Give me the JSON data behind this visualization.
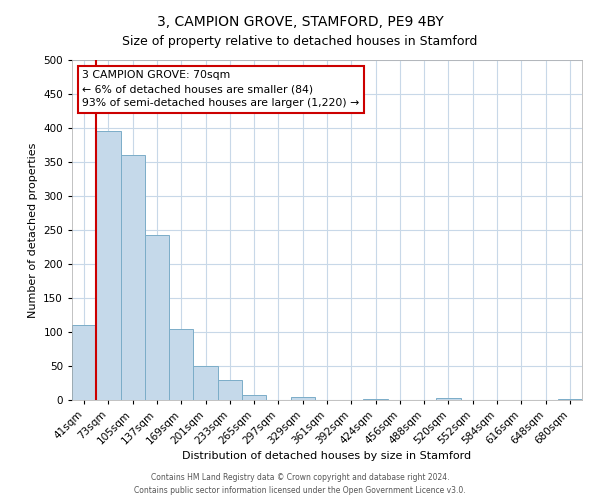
{
  "title": "3, CAMPION GROVE, STAMFORD, PE9 4BY",
  "subtitle": "Size of property relative to detached houses in Stamford",
  "xlabel": "Distribution of detached houses by size in Stamford",
  "ylabel": "Number of detached properties",
  "bar_labels": [
    "41sqm",
    "73sqm",
    "105sqm",
    "137sqm",
    "169sqm",
    "201sqm",
    "233sqm",
    "265sqm",
    "297sqm",
    "329sqm",
    "361sqm",
    "392sqm",
    "424sqm",
    "456sqm",
    "488sqm",
    "520sqm",
    "552sqm",
    "584sqm",
    "616sqm",
    "648sqm",
    "680sqm"
  ],
  "bar_values": [
    110,
    395,
    360,
    243,
    105,
    50,
    30,
    8,
    0,
    5,
    0,
    0,
    2,
    0,
    0,
    3,
    0,
    0,
    0,
    0,
    2
  ],
  "bar_color": "#c5d9ea",
  "bar_edgecolor": "#7badc8",
  "highlight_color": "#cc0000",
  "property_line_label": "3 CAMPION GROVE: 70sqm",
  "annotation_line1": "← 6% of detached houses are smaller (84)",
  "annotation_line2": "93% of semi-detached houses are larger (1,220) →",
  "box_facecolor": "#ffffff",
  "box_edgecolor": "#cc0000",
  "ylim": [
    0,
    500
  ],
  "yticks": [
    0,
    50,
    100,
    150,
    200,
    250,
    300,
    350,
    400,
    450,
    500
  ],
  "footer1": "Contains HM Land Registry data © Crown copyright and database right 2024.",
  "footer2": "Contains public sector information licensed under the Open Government Licence v3.0.",
  "fig_facecolor": "#ffffff",
  "plot_facecolor": "#ffffff",
  "grid_color": "#c8d8e8",
  "title_fontsize": 10,
  "subtitle_fontsize": 9
}
